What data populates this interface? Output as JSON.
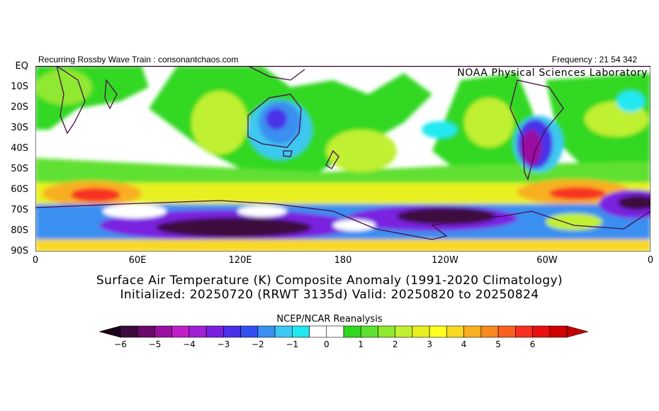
{
  "header": {
    "left": "Recurring Rossby Wave Train : consonantchaos.com",
    "right": "Frequency : 21 54 342",
    "lab": "NOAA Physical Sciences Laboratory"
  },
  "map": {
    "lat_labels": [
      "EQ",
      "10S",
      "20S",
      "30S",
      "40S",
      "50S",
      "60S",
      "70S",
      "80S",
      "90S"
    ],
    "lon_labels": [
      "0",
      "60E",
      "120E",
      "180",
      "120W",
      "60W",
      "0"
    ],
    "border_color": "#4a0a4a"
  },
  "titles": {
    "line1": "Surface Air Temperature (K) Composite Anomaly (1991-2020 Climatology)",
    "line2": "Initialized: 20250720 (RRWT 3135d) Valid: 20250820 to 20250824"
  },
  "colorbar": {
    "title": "NCEP/NCAR Reanalysis",
    "tick_labels": [
      "-6",
      "-5",
      "-4",
      "-3",
      "-2",
      "-1",
      "0",
      "1",
      "2",
      "3",
      "4",
      "5",
      "6"
    ],
    "colors": [
      "#3c0a3c",
      "#6a0a6a",
      "#9a10a0",
      "#c020c8",
      "#a020d8",
      "#7a20e0",
      "#4a30e8",
      "#3050f0",
      "#3a8ff0",
      "#3cc8f0",
      "#20e8f0",
      "#ffffff",
      "#ffffff",
      "#30d820",
      "#60e030",
      "#90e830",
      "#c0f030",
      "#e8f020",
      "#ffff20",
      "#f8d820",
      "#f8b020",
      "#f88820",
      "#f86020",
      "#f83020",
      "#e81010",
      "#d00000"
    ]
  }
}
